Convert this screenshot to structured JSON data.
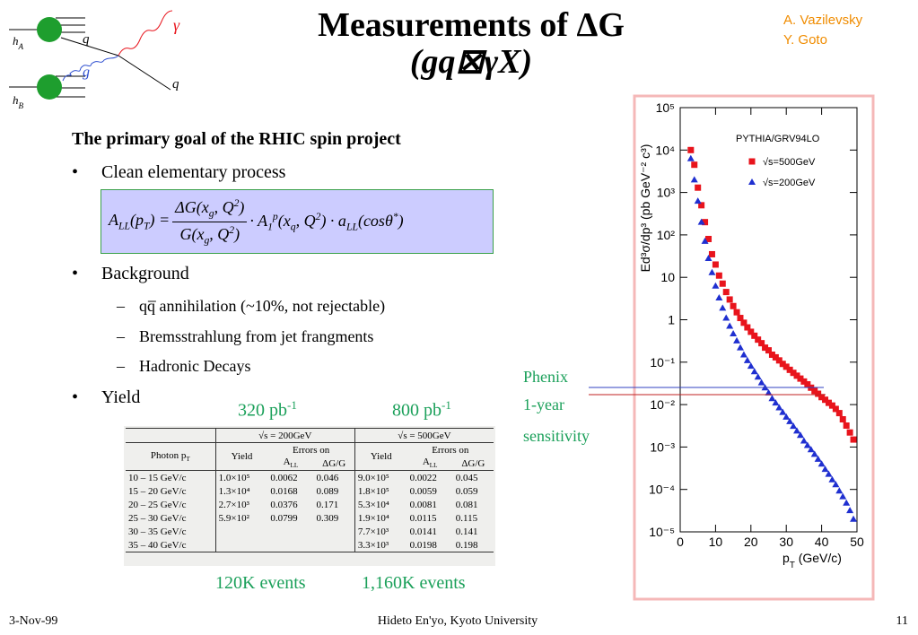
{
  "header": {
    "title": "Measurements of ΔG",
    "subtitle": "(gq⊠γX)",
    "authors": [
      "A. Vazilevsky",
      "Y. Goto"
    ]
  },
  "diagram": {
    "hadron_a": [
      {
        "t": "h"
      },
      {
        "sub": "A"
      }
    ],
    "hadron_b": [
      {
        "t": "h"
      },
      {
        "sub": "B"
      }
    ],
    "quark_in": "q",
    "gluon": "g",
    "photon": "γ",
    "quark_out": "q"
  },
  "body": {
    "heading": "The primary goal of the RHIC spin project",
    "bullet_1": "Clean elementary process",
    "formula": {
      "lhs": [
        {
          "t": "A"
        },
        {
          "sub": "LL"
        },
        {
          "t": "(p"
        },
        {
          "sub": "T"
        },
        {
          "t": ") = "
        }
      ],
      "numerator": [
        {
          "t": "ΔG(x"
        },
        {
          "sub": "g"
        },
        {
          "t": ", Q"
        },
        {
          "sup": "2"
        },
        {
          "t": ")"
        }
      ],
      "denominator": [
        {
          "t": "G(x"
        },
        {
          "sub": "g"
        },
        {
          "t": ", Q"
        },
        {
          "sup": "2"
        },
        {
          "t": ")"
        }
      ],
      "rhs": [
        {
          "t": " · A"
        },
        {
          "sub": "1"
        },
        {
          "sup": "p"
        },
        {
          "t": "(x"
        },
        {
          "sub": "q"
        },
        {
          "t": ", Q"
        },
        {
          "sup": "2"
        },
        {
          "t": ") · a"
        },
        {
          "sub": "LL"
        },
        {
          "t": "(cosθ"
        },
        {
          "sup": "*"
        },
        {
          "t": ")"
        }
      ]
    },
    "bullet_2": "Background",
    "sub_items": [
      "qq̅ annihilation (~10%, not rejectable)",
      "Bremsstrahlung from jet frangments",
      "Hadronic Decays"
    ],
    "bullet_3": "Yield",
    "lumi_200": [
      {
        "t": "320 pb"
      },
      {
        "sup": "-1"
      }
    ],
    "lumi_500": [
      {
        "t": "800 pb"
      },
      {
        "sup": "-1"
      }
    ],
    "events_200": "120K events",
    "events_500": "1,160K events",
    "sensitivity": [
      "Phenix",
      "1-year",
      "sensitivity"
    ]
  },
  "table": {
    "photon_header": [
      {
        "t": "Photon p"
      },
      {
        "sub": "T"
      }
    ],
    "groups": [
      {
        "title": "√s = 200GeV",
        "yield": "Yield",
        "errors": "Errors on",
        "all": [
          {
            "t": "A"
          },
          {
            "sub": "LL"
          }
        ],
        "dgg": "ΔG/G"
      },
      {
        "title": "√s = 500GeV",
        "yield": "Yield",
        "errors": "Errors on",
        "all": [
          {
            "t": "A"
          },
          {
            "sub": "LL"
          }
        ],
        "dgg": "ΔG/G"
      }
    ],
    "rows": [
      [
        "10 – 15 GeV/c",
        "1.0×10⁵",
        "0.0062",
        "0.046",
        "9.0×10⁵",
        "0.0022",
        "0.045"
      ],
      [
        "15 – 20 GeV/c",
        "1.3×10⁴",
        "0.0168",
        "0.089",
        "1.8×10⁵",
        "0.0059",
        "0.059"
      ],
      [
        "20 – 25 GeV/c",
        "2.7×10³",
        "0.0376",
        "0.171",
        "5.3×10⁴",
        "0.0081",
        "0.081"
      ],
      [
        "25 – 30 GeV/c",
        "5.9×10²",
        "0.0799",
        "0.309",
        "1.9×10⁴",
        "0.0115",
        "0.115"
      ],
      [
        "30 – 35 GeV/c",
        null,
        null,
        null,
        "7.7×10³",
        "0.0141",
        "0.141"
      ],
      [
        "35 – 40 GeV/c",
        null,
        null,
        null,
        "3.3×10³",
        "0.0198",
        "0.198"
      ]
    ]
  },
  "chart_data": {
    "type": "scatter",
    "annotation": "PYTHIA/GRV94LO",
    "ylabel": "Ed³σ/dp³ (pb GeV⁻² c³)",
    "xlabel": [
      {
        "t": "p"
      },
      {
        "sub": "T"
      },
      {
        "t": " (GeV/c)"
      }
    ],
    "log_y": true,
    "legend": "upper right",
    "xlim": [
      0,
      50
    ],
    "xticks": [
      0,
      10,
      20,
      30,
      40,
      50
    ],
    "ylim": [
      1e-05,
      100000.0
    ],
    "yticks": [
      {
        "value": 100000.0,
        "label": "10⁵"
      },
      {
        "value": 10000.0,
        "label": "10⁴"
      },
      {
        "value": 1000.0,
        "label": "10³"
      },
      {
        "value": 100.0,
        "label": "10²"
      },
      10,
      1,
      {
        "value": 0.1,
        "label": "10⁻¹"
      },
      {
        "value": 0.01,
        "label": "10⁻²"
      },
      {
        "value": 0.001,
        "label": "10⁻³"
      },
      {
        "value": 0.0001,
        "label": "10⁻⁴"
      },
      {
        "value": 1e-05,
        "label": "10⁻⁵"
      }
    ],
    "x": [
      3,
      4,
      5,
      6,
      7,
      8,
      9,
      10,
      11,
      12,
      13,
      14,
      15,
      16,
      17,
      18,
      19,
      20,
      21,
      22,
      23,
      24,
      25,
      26,
      27,
      28,
      29,
      30,
      31,
      32,
      33,
      34,
      35,
      36,
      37,
      38,
      39,
      40,
      41,
      42,
      43,
      44,
      45,
      46,
      47,
      48,
      49
    ],
    "series": [
      {
        "name": "√s=500GeV",
        "color": "#e8141c",
        "marker": "square",
        "values": [
          10000.0,
          4500.0,
          1300.0,
          500.0,
          200.0,
          80,
          35,
          20,
          11,
          7.1,
          4.5,
          3.0,
          2.1,
          1.5,
          1.1,
          0.85,
          0.66,
          0.52,
          0.42,
          0.34,
          0.28,
          0.22,
          0.19,
          0.15,
          0.13,
          0.11,
          0.091,
          0.078,
          0.066,
          0.056,
          0.048,
          0.041,
          0.035,
          0.03,
          0.025,
          0.021,
          0.018,
          0.015,
          0.013,
          0.011,
          0.0095,
          0.0079,
          0.0063,
          0.0045,
          0.0032,
          0.0022,
          0.0015
        ]
      },
      {
        "name": "√s=200GeV",
        "color": "#1f2fd0",
        "marker": "triangle",
        "values": [
          6300.0,
          2000.0,
          630.0,
          200.0,
          71,
          28,
          13,
          6.3,
          3.3,
          1.9,
          1.1,
          0.71,
          0.47,
          0.32,
          0.22,
          0.15,
          0.11,
          0.081,
          0.06,
          0.045,
          0.033,
          0.025,
          0.019,
          0.014,
          0.011,
          0.0085,
          0.0066,
          0.0051,
          0.004,
          0.0031,
          0.0024,
          0.0019,
          0.0014,
          0.0011,
          0.00087,
          0.00068,
          0.00052,
          0.0004,
          0.0003,
          0.00023,
          0.00017,
          0.00013,
          9.3e-05,
          6.8e-05,
          4.8e-05,
          3.2e-05,
          2e-05
        ]
      }
    ]
  },
  "footer": {
    "date": "3-Nov-99",
    "author": "Hideto En'yo, Kyoto University",
    "page": "11"
  }
}
